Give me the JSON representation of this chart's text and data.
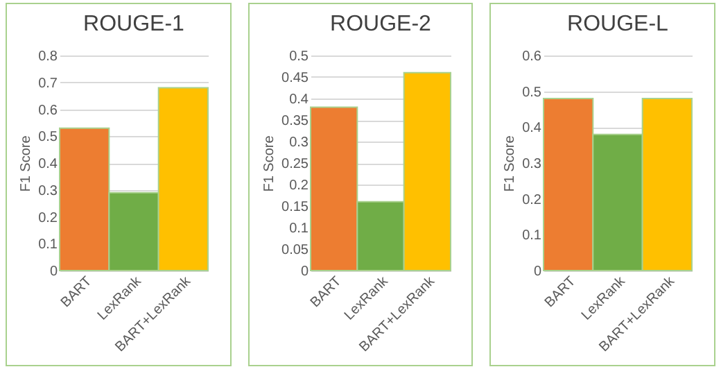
{
  "chart_data": [
    {
      "type": "bar",
      "title": "ROUGE-1",
      "ylabel": "F1 Score",
      "categories": [
        "BART",
        "LexRank",
        "BART+LexRank"
      ],
      "values": [
        0.53,
        0.29,
        0.68
      ],
      "colors": [
        "#ed7d31",
        "#70ad47",
        "#ffc000"
      ],
      "ylim": [
        0,
        0.8
      ],
      "yticks": [
        0,
        0.1,
        0.2,
        0.3,
        0.4,
        0.5,
        0.6,
        0.7,
        0.8
      ],
      "grid": "y"
    },
    {
      "type": "bar",
      "title": "ROUGE-2",
      "ylabel": "F1 Score",
      "categories": [
        "BART",
        "LexRank",
        "BART+LexRank"
      ],
      "values": [
        0.38,
        0.16,
        0.46
      ],
      "colors": [
        "#ed7d31",
        "#70ad47",
        "#ffc000"
      ],
      "ylim": [
        0,
        0.5
      ],
      "yticks": [
        0,
        0.05,
        0.1,
        0.15,
        0.2,
        0.25,
        0.3,
        0.35,
        0.4,
        0.45,
        0.5
      ],
      "grid": "y"
    },
    {
      "type": "bar",
      "title": "ROUGE-L",
      "ylabel": "F1 Score",
      "categories": [
        "BART",
        "LexRank",
        "BART+LexRank"
      ],
      "values": [
        0.48,
        0.38,
        0.48
      ],
      "colors": [
        "#ed7d31",
        "#70ad47",
        "#ffc000"
      ],
      "ylim": [
        0,
        0.6
      ],
      "yticks": [
        0,
        0.1,
        0.2,
        0.3,
        0.4,
        0.5,
        0.6
      ],
      "grid": "y"
    }
  ]
}
